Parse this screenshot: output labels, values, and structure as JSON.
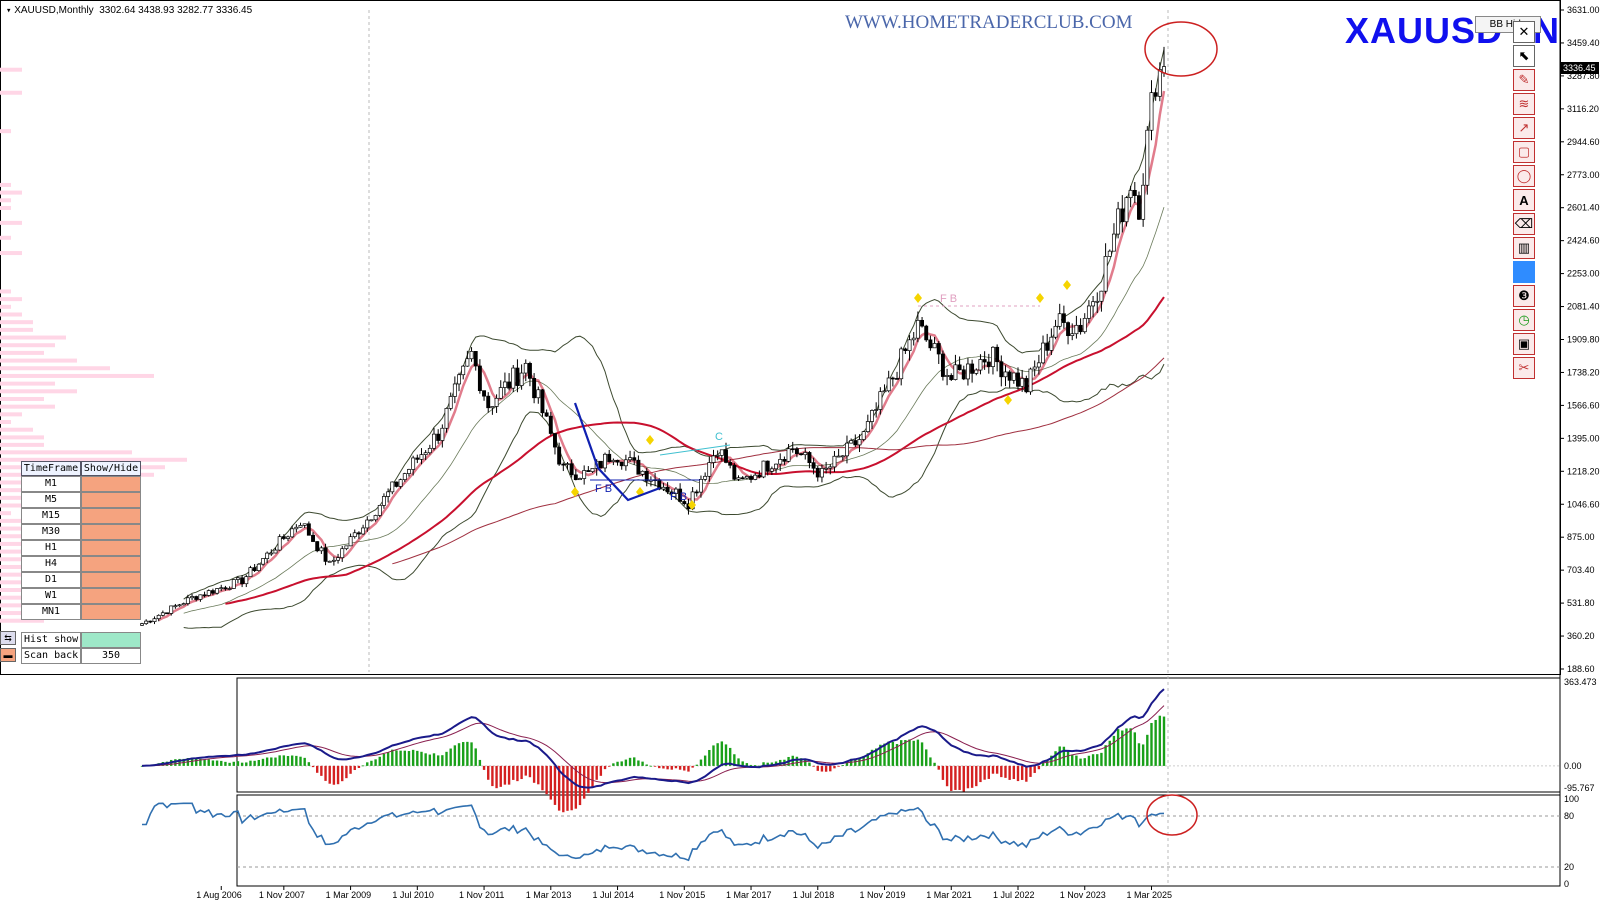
{
  "header": {
    "symbol_tf": "XAUUSD,Monthly",
    "ohlc": "3302.64 3438.93 3282.77 3336.45"
  },
  "watermark": "WWW.HOMETRADERCLUB.COM",
  "symbol_big": "XAUUSD",
  "symbol_big_tail": "N",
  "bb_hide_label": "BB Hide",
  "timeframe_panel": {
    "col1": "TimeFrame",
    "col2": "Show/Hide",
    "rows": [
      "M1",
      "M5",
      "M15",
      "M30",
      "H1",
      "H4",
      "D1",
      "W1",
      "MN1"
    ]
  },
  "hist_label": "Hist show",
  "scan_label": "Scan back",
  "scan_value": "350",
  "toolbar_icons": [
    "close-icon",
    "cursor-icon",
    "pencil-icon",
    "fibo-icon",
    "arrow-icon",
    "rectangle-icon",
    "ellipse-icon",
    "text-icon",
    "eraser-icon",
    "trash-icon",
    "color-swatch-icon",
    "number-3-icon",
    "clock-icon",
    "save-icon",
    "scissors-icon"
  ],
  "colors": {
    "up_candle": "#000000",
    "ma_red": "#c8102e",
    "bb_green": "#3d4a30",
    "macd_line": "#1a1a8a",
    "signal_line": "#8a2050",
    "hist_pos": "#19a019",
    "hist_neg": "#d42020",
    "rsi_line": "#3070b0",
    "volume_profile": "#ffd6e6",
    "highlight_circle": "#cc2020",
    "pattern_diamond": "#f5d400"
  },
  "chart_data": {
    "main": {
      "type": "candlestick",
      "yticks": [
        3631.0,
        3459.4,
        3287.8,
        3116.2,
        2944.6,
        2773.0,
        2601.4,
        2424.6,
        2253.0,
        2081.4,
        1909.8,
        1738.2,
        1566.6,
        1395.0,
        1218.2,
        1046.6,
        875.0,
        703.4,
        531.8,
        360.2,
        188.6
      ],
      "current_price": "3336.45",
      "xticks": [
        "1 Aug 2006",
        "1 Nov 2007",
        "1 Mar 2009",
        "1 Jul 2010",
        "1 Nov 2011",
        "1 Mar 2013",
        "1 Jul 2014",
        "1 Nov 2015",
        "1 Mar 2017",
        "1 Jul 2018",
        "1 Nov 2019",
        "1 Mar 2021",
        "1 Jul 2022",
        "1 Nov 2023",
        "1 Mar 2025"
      ],
      "close_series": [
        {
          "date": "2005-01",
          "close": 425
        },
        {
          "date": "2006-01",
          "close": 560
        },
        {
          "date": "2007-01",
          "close": 650
        },
        {
          "date": "2008-03",
          "close": 960
        },
        {
          "date": "2008-10",
          "close": 730
        },
        {
          "date": "2009-12",
          "close": 1100
        },
        {
          "date": "2010-12",
          "close": 1420
        },
        {
          "date": "2011-08",
          "close": 1830
        },
        {
          "date": "2011-12",
          "close": 1570
        },
        {
          "date": "2012-09",
          "close": 1775
        },
        {
          "date": "2013-06",
          "close": 1230
        },
        {
          "date": "2013-12",
          "close": 1200
        },
        {
          "date": "2014-06",
          "close": 1320
        },
        {
          "date": "2015-12",
          "close": 1060
        },
        {
          "date": "2016-07",
          "close": 1350
        },
        {
          "date": "2016-12",
          "close": 1150
        },
        {
          "date": "2018-01",
          "close": 1345
        },
        {
          "date": "2018-08",
          "close": 1200
        },
        {
          "date": "2019-06",
          "close": 1410
        },
        {
          "date": "2020-07",
          "close": 1975
        },
        {
          "date": "2021-03",
          "close": 1705
        },
        {
          "date": "2021-12",
          "close": 1830
        },
        {
          "date": "2022-09",
          "close": 1660
        },
        {
          "date": "2023-04",
          "close": 1990
        },
        {
          "date": "2023-10",
          "close": 1985
        },
        {
          "date": "2024-03",
          "close": 2230
        },
        {
          "date": "2024-10",
          "close": 2745
        },
        {
          "date": "2024-12",
          "close": 2625
        },
        {
          "date": "2025-04",
          "close": 3290
        },
        {
          "date": "2025-06",
          "close": 3336
        }
      ],
      "annotations": [
        "F B",
        "F B",
        "F B",
        "C"
      ]
    },
    "macd": {
      "type": "line",
      "yticks": [
        "363.473",
        "0.00",
        "-95.767"
      ]
    },
    "rsi": {
      "type": "line",
      "yticks": [
        "100",
        "80",
        "20",
        "0"
      ]
    }
  }
}
